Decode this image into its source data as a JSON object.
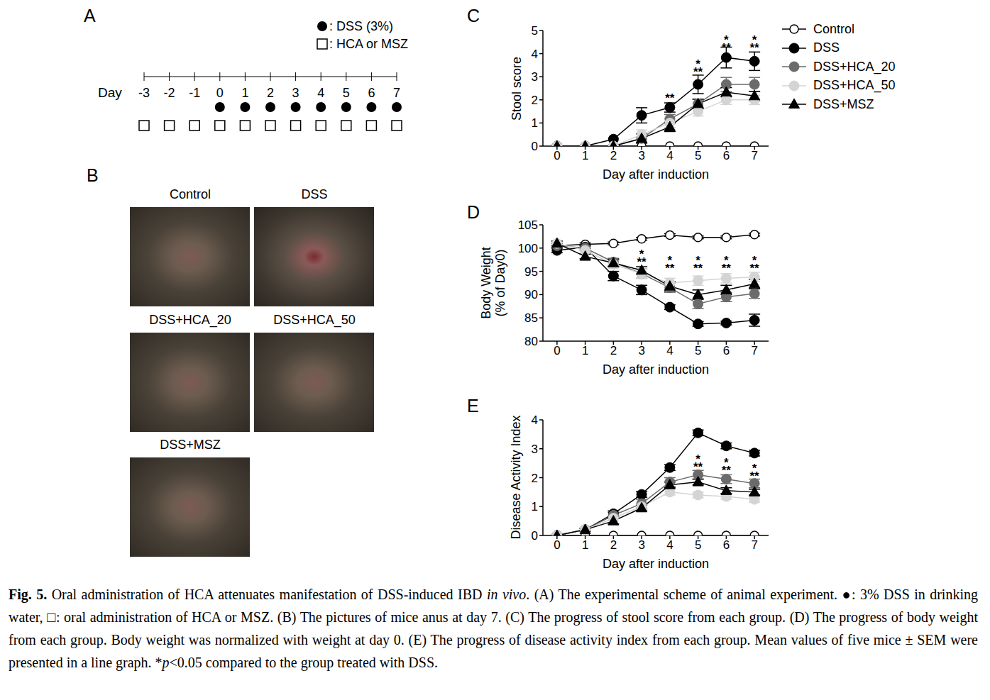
{
  "panels": {
    "A": {
      "label": "A",
      "legend": [
        {
          "marker": "dot",
          "text": ": DSS (3%)"
        },
        {
          "marker": "square",
          "text": ": HCA or MSZ"
        }
      ],
      "axis_label": "Day",
      "days": [
        -3,
        -2,
        -1,
        0,
        1,
        2,
        3,
        4,
        5,
        6,
        7
      ],
      "dss_days": [
        0,
        1,
        2,
        3,
        4,
        5,
        6,
        7
      ],
      "treatment_days": [
        -3,
        -2,
        -1,
        0,
        1,
        2,
        3,
        4,
        5,
        6,
        7
      ]
    },
    "B": {
      "label": "B",
      "photos": [
        "Control",
        "DSS",
        "DSS+HCA_20",
        "DSS+HCA_50",
        "DSS+MSZ"
      ]
    }
  },
  "chart_data": [
    {
      "panel": "C",
      "type": "line",
      "xlabel": "Day after induction",
      "ylabel": "Stool score",
      "x": [
        0,
        1,
        2,
        3,
        4,
        5,
        6,
        7
      ],
      "xlim": [
        -0.5,
        7.5
      ],
      "xticks": [
        0,
        1,
        2,
        3,
        4,
        5,
        6,
        7
      ],
      "ylim": [
        0,
        5
      ],
      "yticks": [
        0,
        1,
        2,
        3,
        4,
        5
      ],
      "legend": "right",
      "series": [
        {
          "name": "Control",
          "color": "#000000",
          "marker": "circle_open",
          "values": [
            0,
            0,
            0,
            0,
            0,
            0,
            0,
            0
          ]
        },
        {
          "name": "DSS",
          "color": "#000000",
          "marker": "circle",
          "values": [
            0,
            0,
            0.3,
            1.33,
            1.67,
            2.67,
            3.83,
            3.67
          ],
          "errors": [
            0,
            0,
            0,
            0.33,
            0.2,
            0.4,
            0.45,
            0.4
          ]
        },
        {
          "name": "DSS+HCA_20",
          "color": "#6b6b6b",
          "marker": "circle",
          "values": [
            0,
            0,
            0,
            0.33,
            1.17,
            1.83,
            2.67,
            2.67
          ],
          "errors": [
            0,
            0,
            0,
            0.2,
            0.2,
            0.2,
            0.3,
            0.3
          ]
        },
        {
          "name": "DSS+HCA_50",
          "color": "#d4d4d4",
          "marker": "circle",
          "values": [
            0,
            0,
            0,
            0.5,
            1.0,
            1.5,
            2.0,
            2.0
          ],
          "errors": [
            0,
            0,
            0,
            0.2,
            0.2,
            0.2,
            0.2,
            0.2
          ]
        },
        {
          "name": "DSS+MSZ",
          "color": "#000000",
          "marker": "triangle",
          "values": [
            0,
            0,
            0,
            0.33,
            0.83,
            1.83,
            2.33,
            2.17
          ],
          "errors": [
            0,
            0,
            0,
            0.2,
            0.2,
            0.2,
            0.2,
            0.2
          ]
        }
      ],
      "annotations": [
        {
          "x": 4,
          "y": 2.18,
          "text": [
            "**"
          ]
        },
        {
          "x": 5,
          "y": 3.3,
          "text": [
            "*",
            "**"
          ]
        },
        {
          "x": 6,
          "y": 4.35,
          "text": [
            "*",
            "**"
          ]
        },
        {
          "x": 7,
          "y": 4.35,
          "text": [
            "*",
            "**"
          ]
        }
      ]
    },
    {
      "panel": "D",
      "type": "line",
      "xlabel": "Day after induction",
      "ylabel": [
        "Body Weight",
        "(% of Day0)"
      ],
      "x": [
        0,
        1,
        2,
        3,
        4,
        5,
        6,
        7
      ],
      "xlim": [
        -0.5,
        7.5
      ],
      "xticks": [
        0,
        1,
        2,
        3,
        4,
        5,
        6,
        7
      ],
      "ylim": [
        80,
        105
      ],
      "yticks": [
        80,
        85,
        90,
        95,
        100,
        105
      ],
      "series": [
        {
          "name": "Control",
          "color": "#000000",
          "marker": "circle_open",
          "values": [
            100.5,
            100.8,
            101,
            102,
            102.8,
            102.3,
            102.3,
            102.9
          ],
          "errors": [
            0.5,
            0.3,
            0.3,
            0.3,
            0.3,
            0.3,
            0.3,
            0.3
          ]
        },
        {
          "name": "DSS",
          "color": "#000000",
          "marker": "circle",
          "values": [
            99.5,
            100.2,
            94,
            91,
            87.3,
            83.7,
            83.9,
            84.5
          ],
          "errors": [
            0.5,
            0.3,
            1,
            1,
            0.5,
            0.5,
            0.4,
            1.3
          ]
        },
        {
          "name": "DSS+HCA_20",
          "color": "#6b6b6b",
          "marker": "circle",
          "values": [
            100.5,
            100,
            97,
            94.5,
            91.5,
            88,
            89.5,
            90.2
          ],
          "errors": [
            0.5,
            0.5,
            0.8,
            1,
            1,
            1,
            1,
            1
          ]
        },
        {
          "name": "DSS+HCA_50",
          "color": "#d4d4d4",
          "marker": "circle",
          "values": [
            101,
            99.5,
            96.5,
            94.5,
            92.5,
            93,
            93.5,
            93.8
          ],
          "errors": [
            0.5,
            0.5,
            0.8,
            1,
            1,
            1,
            1,
            1
          ]
        },
        {
          "name": "DSS+MSZ",
          "color": "#000000",
          "marker": "triangle",
          "values": [
            101,
            98.2,
            96.8,
            95.2,
            91.8,
            90,
            91,
            92.3
          ],
          "errors": [
            0.5,
            0.5,
            0.8,
            0.8,
            1,
            1,
            1,
            1
          ]
        }
      ],
      "annotations": [
        {
          "x": 3,
          "y": 97.5,
          "text": [
            "*",
            "**"
          ]
        },
        {
          "x": 4,
          "y": 96.2,
          "text": [
            "*",
            "**"
          ]
        },
        {
          "x": 5,
          "y": 96.2,
          "text": [
            "*",
            "**"
          ]
        },
        {
          "x": 6,
          "y": 96.2,
          "text": [
            "*",
            "**"
          ]
        },
        {
          "x": 7,
          "y": 96.2,
          "text": [
            "*",
            "**"
          ]
        }
      ]
    },
    {
      "panel": "E",
      "type": "line",
      "xlabel": "Day after induction",
      "ylabel": "Disease Activity Index",
      "x": [
        0,
        1,
        2,
        3,
        4,
        5,
        6,
        7
      ],
      "xlim": [
        -0.5,
        7.5
      ],
      "xticks": [
        0,
        1,
        2,
        3,
        4,
        5,
        6,
        7
      ],
      "ylim": [
        0,
        4
      ],
      "yticks": [
        0,
        1,
        2,
        3,
        4
      ],
      "series": [
        {
          "name": "Control",
          "color": "#000000",
          "marker": "circle_open",
          "values": [
            0,
            0,
            0,
            0,
            0,
            0,
            0,
            0
          ]
        },
        {
          "name": "DSS",
          "color": "#000000",
          "marker": "circle",
          "values": [
            0,
            0.2,
            0.75,
            1.42,
            2.35,
            3.55,
            3.1,
            2.85
          ],
          "errors": [
            0,
            0.05,
            0.1,
            0.1,
            0.1,
            0.1,
            0.1,
            0.1
          ]
        },
        {
          "name": "DSS+HCA_20",
          "color": "#6b6b6b",
          "marker": "circle",
          "values": [
            0,
            0.2,
            0.7,
            1.1,
            1.85,
            2.1,
            1.95,
            1.8
          ],
          "errors": [
            0,
            0.05,
            0.1,
            0.15,
            0.15,
            0.15,
            0.15,
            0.15
          ]
        },
        {
          "name": "DSS+HCA_50",
          "color": "#d4d4d4",
          "marker": "circle",
          "values": [
            0,
            0.2,
            0.6,
            1.0,
            1.5,
            1.4,
            1.35,
            1.25
          ],
          "errors": [
            0,
            0.05,
            0.1,
            0.1,
            0.1,
            0.1,
            0.1,
            0.1
          ]
        },
        {
          "name": "DSS+MSZ",
          "color": "#000000",
          "marker": "triangle",
          "values": [
            0,
            0.2,
            0.5,
            0.95,
            1.75,
            1.85,
            1.55,
            1.5
          ],
          "errors": [
            0,
            0.05,
            0.1,
            0.1,
            0.1,
            0.1,
            0.1,
            0.1
          ]
        }
      ],
      "annotations": [
        {
          "x": 5,
          "y": 2.45,
          "text": [
            "*",
            "**"
          ]
        },
        {
          "x": 6,
          "y": 2.33,
          "text": [
            "*",
            "**"
          ]
        },
        {
          "x": 7,
          "y": 2.13,
          "text": [
            "*",
            "**"
          ]
        }
      ]
    }
  ],
  "caption": [
    {
      "text": "Fig. 5.",
      "style": "bold"
    },
    {
      "text": " Oral administration of HCA attenuates manifestation of DSS-induced IBD "
    },
    {
      "text": "in vivo",
      "style": "italic"
    },
    {
      "text": ". (A) The experimental scheme of animal experiment. ●: 3% DSS in drinking water, □: oral administration of HCA or MSZ. (B) The pictures of mice anus at day 7. (C) The progress of stool score from each group. (D) The progress of body weight from each group. Body weight was normalized with weight at day 0. (E) The progress of disease activity index from each group. Mean values of five mice ± SEM were presented in a line graph. *"
    },
    {
      "text": "p",
      "style": "italic"
    },
    {
      "text": "<0.05 compared to the group treated with DSS."
    }
  ]
}
